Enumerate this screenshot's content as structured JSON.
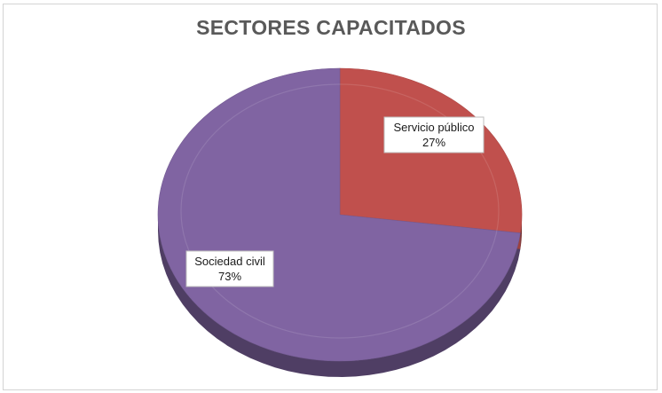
{
  "chart_data": {
    "type": "pie",
    "title": "SECTORES CAPACITADOS",
    "slices": [
      {
        "name": "Servicio público",
        "value": 27,
        "label": "27%",
        "color": "#c0504d"
      },
      {
        "name": "Sociedad civil",
        "value": 73,
        "label": "73%",
        "color": "#8064a2"
      }
    ],
    "style": "3d",
    "legend": "none"
  }
}
